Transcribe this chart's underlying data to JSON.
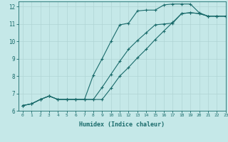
{
  "xlabel": "Humidex (Indice chaleur)",
  "xlim": [
    -0.5,
    23
  ],
  "ylim": [
    6,
    12.3
  ],
  "xticks": [
    0,
    1,
    2,
    3,
    4,
    5,
    6,
    7,
    8,
    9,
    10,
    11,
    12,
    13,
    14,
    15,
    16,
    17,
    18,
    19,
    20,
    21,
    22,
    23
  ],
  "yticks": [
    6,
    7,
    8,
    9,
    10,
    11,
    12
  ],
  "background_color": "#c5e8e8",
  "grid_color": "#b0d4d4",
  "line_color": "#1a6b6b",
  "line1_x": [
    0,
    1,
    2,
    3,
    4,
    5,
    6,
    7,
    8,
    9,
    10,
    11,
    12,
    13,
    14,
    15,
    16,
    17,
    18,
    19,
    20,
    21,
    22,
    23
  ],
  "line1_y": [
    6.3,
    6.4,
    6.65,
    6.85,
    6.65,
    6.65,
    6.65,
    6.65,
    6.65,
    6.65,
    7.3,
    8.0,
    8.5,
    9.05,
    9.55,
    10.1,
    10.6,
    11.1,
    11.6,
    11.65,
    11.6,
    11.45,
    11.45,
    11.45
  ],
  "line2_x": [
    0,
    1,
    2,
    3,
    4,
    5,
    6,
    7,
    8,
    9,
    10,
    11,
    12,
    13,
    14,
    15,
    16,
    17,
    18,
    19,
    20,
    21,
    22,
    23
  ],
  "line2_y": [
    6.3,
    6.4,
    6.65,
    6.85,
    6.65,
    6.65,
    6.65,
    6.65,
    6.65,
    7.35,
    8.1,
    8.85,
    9.55,
    10.05,
    10.5,
    10.95,
    11.0,
    11.05,
    11.6,
    11.65,
    11.6,
    11.45,
    11.45,
    11.45
  ],
  "line3_x": [
    0,
    1,
    2,
    3,
    4,
    5,
    6,
    7,
    8,
    9,
    10,
    11,
    12,
    13,
    14,
    15,
    16,
    17,
    18,
    19,
    20,
    21,
    22,
    23
  ],
  "line3_y": [
    6.3,
    6.4,
    6.65,
    6.85,
    6.65,
    6.65,
    6.65,
    6.65,
    8.05,
    9.0,
    10.0,
    10.95,
    11.05,
    11.75,
    11.8,
    11.8,
    12.1,
    12.15,
    12.15,
    12.15,
    11.65,
    11.45,
    11.45,
    11.45
  ]
}
